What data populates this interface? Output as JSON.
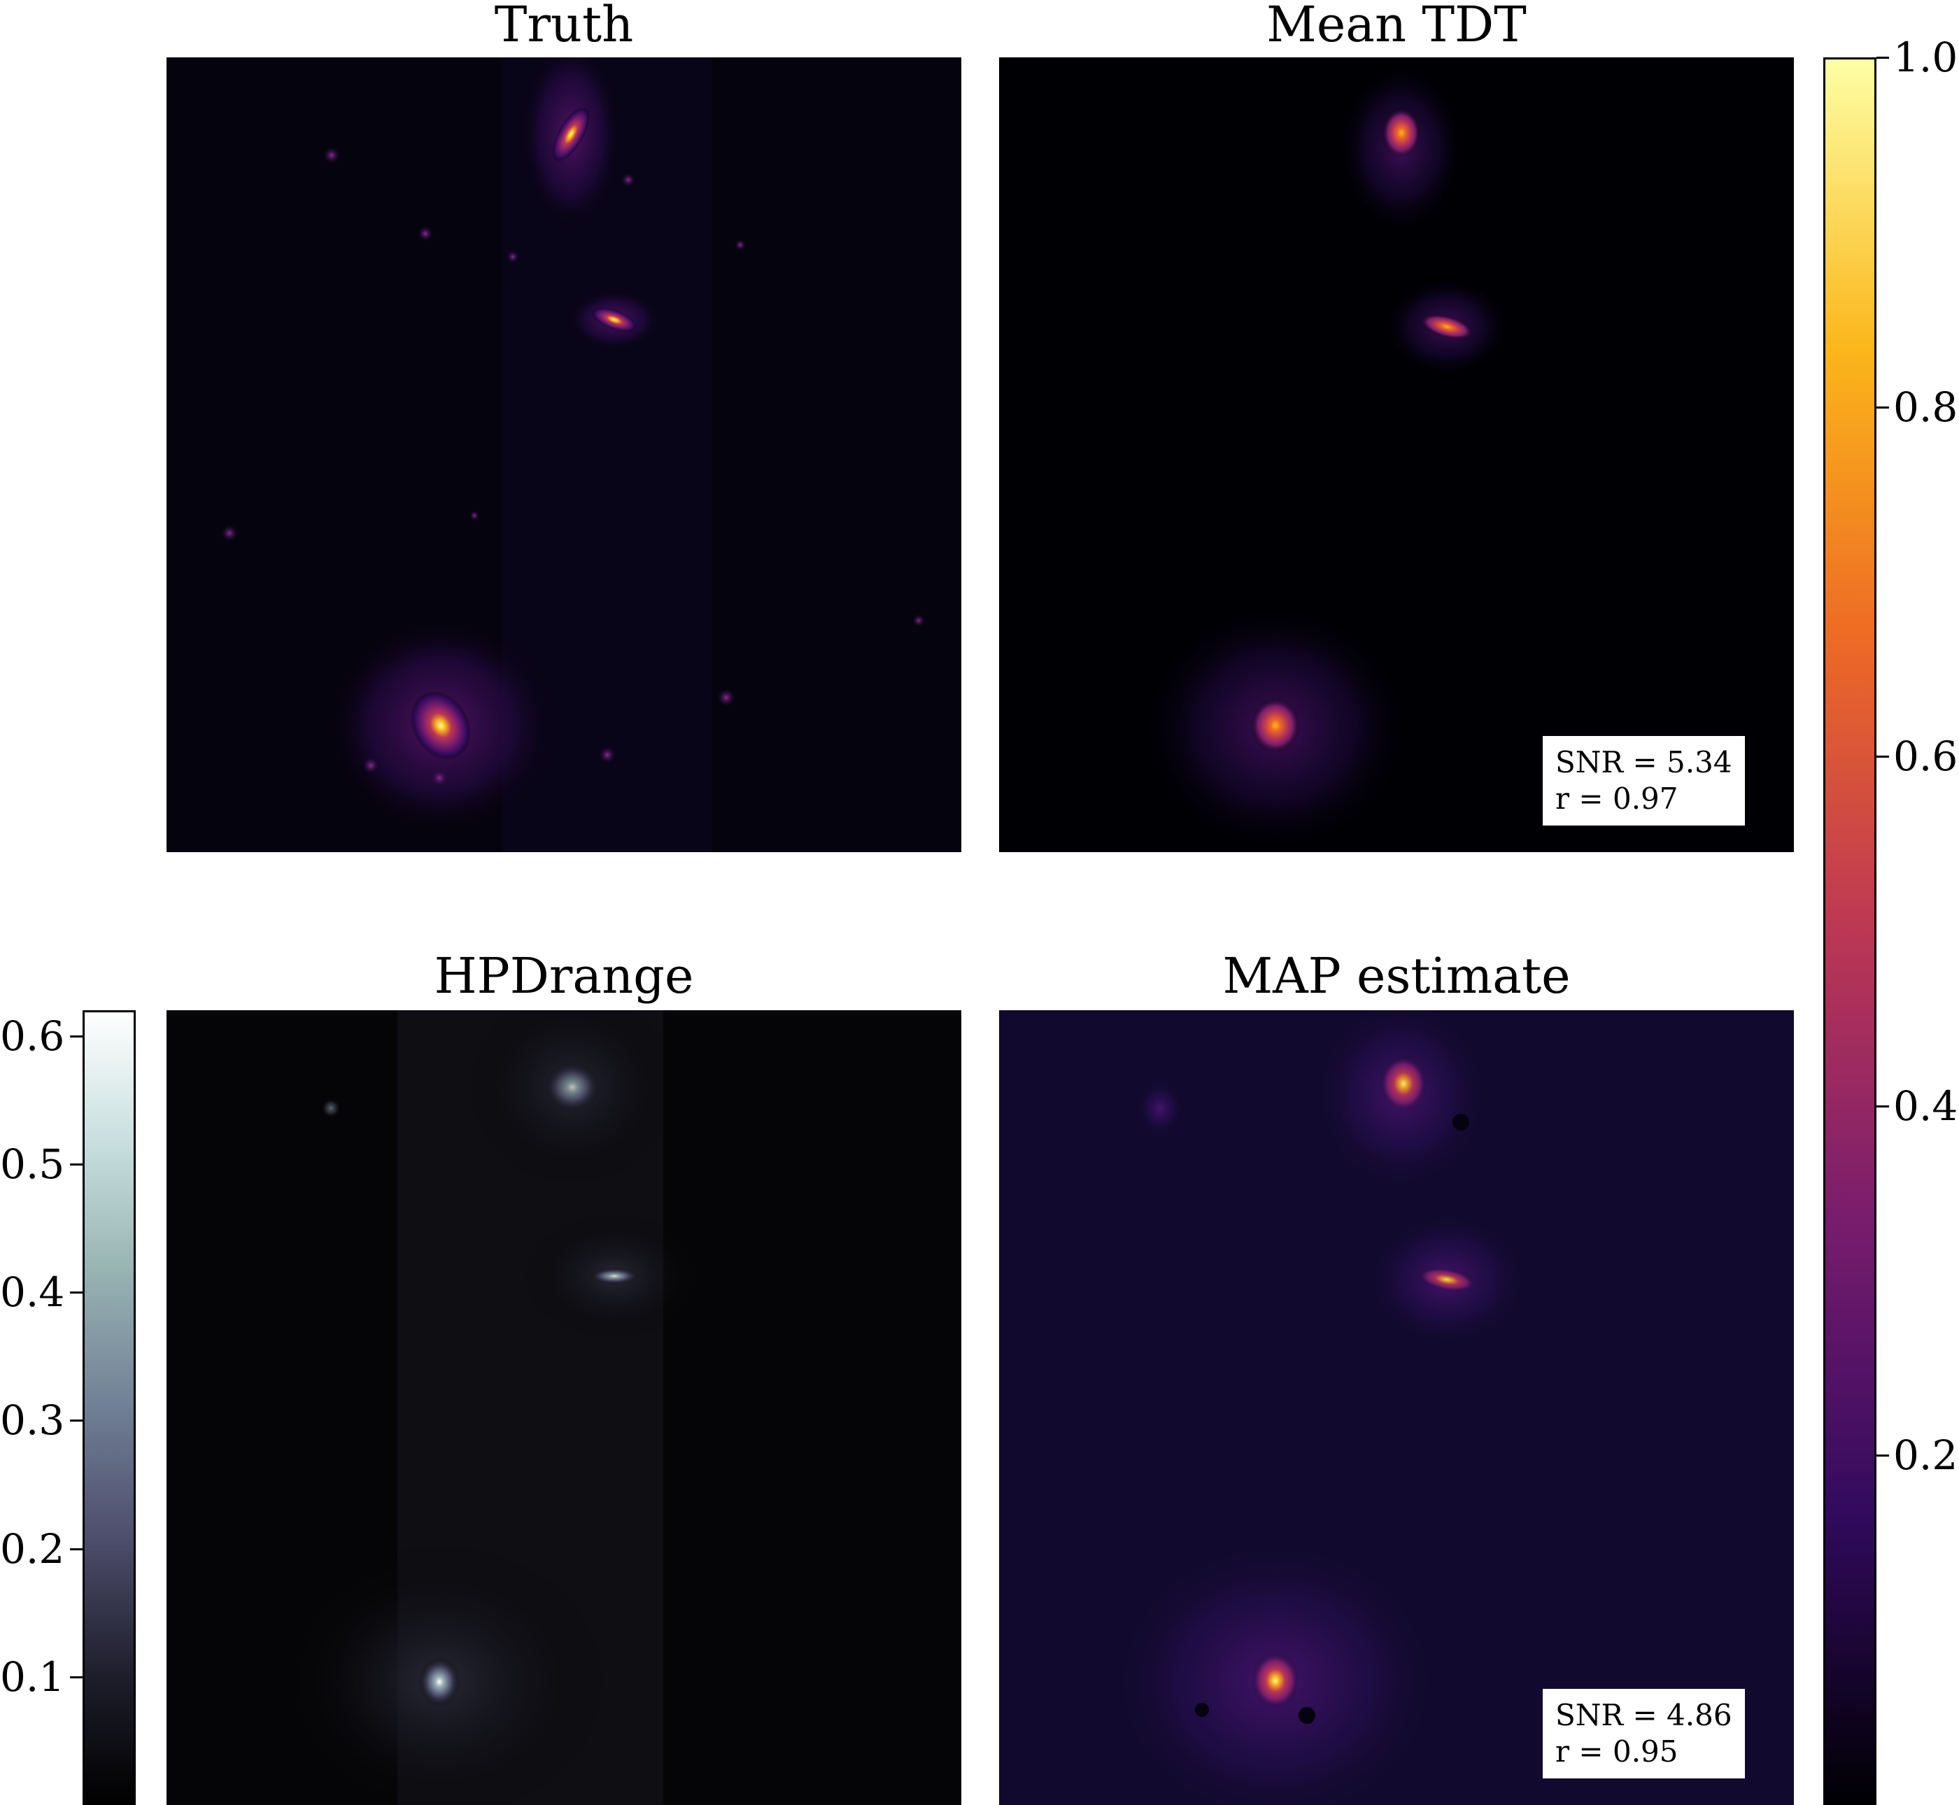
{
  "panels": {
    "truth": {
      "title": "Truth"
    },
    "mean_tdt": {
      "title": "Mean TDT",
      "snr_line": "SNR = 5.34",
      "r_line": "r = 0.97"
    },
    "hpd": {
      "title": "HPDrange"
    },
    "map": {
      "title": "MAP estimate",
      "snr_line": "SNR = 4.86",
      "r_line": "r = 0.95"
    }
  },
  "colorbars": {
    "main": {
      "colormap": "inferno",
      "colors": [
        "#000004",
        "#320a5e",
        "#781c6d",
        "#bc3754",
        "#ed6925",
        "#fbb61a",
        "#fcffa4"
      ],
      "ticks": [
        {
          "value": 0.2,
          "label": "0.2"
        },
        {
          "value": 0.4,
          "label": "0.4"
        },
        {
          "value": 0.6,
          "label": "0.6"
        },
        {
          "value": 0.8,
          "label": "0.8"
        },
        {
          "value": 1.0,
          "label": "1.0"
        }
      ]
    },
    "hpd": {
      "colormap": "bone",
      "colors": [
        "#000000",
        "#1f1f2d",
        "#4d4d6c",
        "#707f95",
        "#96b1b1",
        "#c7dede",
        "#ffffff"
      ],
      "ticks": [
        {
          "value": 0.1,
          "label": "0.1"
        },
        {
          "value": 0.2,
          "label": "0.2"
        },
        {
          "value": 0.3,
          "label": "0.3"
        },
        {
          "value": 0.4,
          "label": "0.4"
        },
        {
          "value": 0.5,
          "label": "0.5"
        },
        {
          "value": 0.6,
          "label": "0.6"
        }
      ]
    }
  },
  "chart_data": [
    {
      "type": "heatmap",
      "title": "Truth",
      "colormap": "inferno",
      "zlim": [
        0,
        1.0
      ]
    },
    {
      "type": "heatmap",
      "title": "Mean TDT",
      "colormap": "inferno",
      "zlim": [
        0,
        1.0
      ],
      "annotations": [
        "SNR = 5.34",
        "r = 0.97"
      ]
    },
    {
      "type": "heatmap",
      "title": "HPDrange",
      "colormap": "bone",
      "zlim": [
        0,
        0.62
      ]
    },
    {
      "type": "heatmap",
      "title": "MAP estimate",
      "colormap": "inferno",
      "zlim": [
        0,
        1.0
      ],
      "annotations": [
        "SNR = 4.86",
        "r = 0.95"
      ]
    }
  ]
}
